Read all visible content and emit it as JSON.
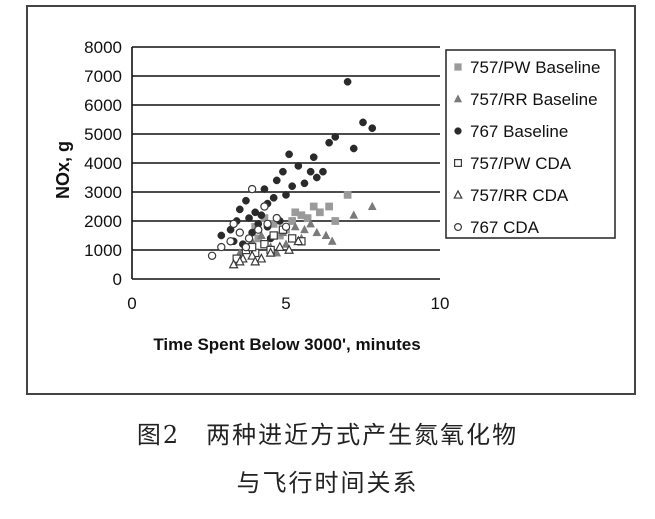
{
  "chart_data": {
    "type": "scatter",
    "title": "",
    "xlabel": "Time Spent Below 3000', minutes",
    "ylabel": "NOx, g",
    "xlim": [
      0,
      10
    ],
    "ylim": [
      0,
      8000
    ],
    "x_ticks": [
      "0",
      "5",
      "10"
    ],
    "y_ticks": [
      "0",
      "1000",
      "2000",
      "3000",
      "4000",
      "5000",
      "6000",
      "7000",
      "8000"
    ],
    "grid": "horizontal",
    "legend_position": "right",
    "series": [
      {
        "name": "757/PW Baseline",
        "marker": "square-filled",
        "color": "#9a9a9a",
        "points": [
          [
            4.0,
            1800
          ],
          [
            4.3,
            2100
          ],
          [
            4.6,
            1900
          ],
          [
            5.0,
            1700
          ],
          [
            5.2,
            2000
          ],
          [
            5.5,
            2200
          ],
          [
            5.7,
            2100
          ],
          [
            5.9,
            2500
          ],
          [
            6.1,
            2300
          ],
          [
            6.4,
            2500
          ],
          [
            6.6,
            2000
          ],
          [
            7.0,
            2900
          ],
          [
            4.8,
            1500
          ],
          [
            5.3,
            2300
          ],
          [
            4.1,
            1400
          ]
        ]
      },
      {
        "name": "757/RR Baseline",
        "marker": "triangle-filled",
        "color": "#7a7a7a",
        "points": [
          [
            3.5,
            900
          ],
          [
            3.9,
            1300
          ],
          [
            4.2,
            1500
          ],
          [
            4.5,
            1100
          ],
          [
            4.9,
            1600
          ],
          [
            5.0,
            1200
          ],
          [
            5.3,
            1800
          ],
          [
            5.5,
            1400
          ],
          [
            5.8,
            1900
          ],
          [
            6.0,
            1600
          ],
          [
            6.3,
            1500
          ],
          [
            6.5,
            1300
          ],
          [
            7.2,
            2200
          ],
          [
            7.8,
            2500
          ],
          [
            4.7,
            900
          ],
          [
            5.6,
            1700
          ]
        ]
      },
      {
        "name": "767 Baseline",
        "marker": "circle-filled",
        "color": "#2a2a2a",
        "points": [
          [
            2.9,
            1500
          ],
          [
            3.2,
            1700
          ],
          [
            3.4,
            2000
          ],
          [
            3.5,
            2400
          ],
          [
            3.6,
            1200
          ],
          [
            3.7,
            2700
          ],
          [
            3.8,
            2100
          ],
          [
            3.9,
            1600
          ],
          [
            4.0,
            2300
          ],
          [
            4.1,
            1900
          ],
          [
            4.2,
            2200
          ],
          [
            4.3,
            3100
          ],
          [
            4.4,
            2600
          ],
          [
            4.5,
            1400
          ],
          [
            4.6,
            2800
          ],
          [
            4.7,
            3400
          ],
          [
            4.8,
            2000
          ],
          [
            4.9,
            3700
          ],
          [
            5.0,
            2900
          ],
          [
            5.1,
            4300
          ],
          [
            5.2,
            3200
          ],
          [
            5.4,
            3900
          ],
          [
            5.6,
            3300
          ],
          [
            5.8,
            3700
          ],
          [
            5.9,
            4200
          ],
          [
            6.0,
            3500
          ],
          [
            6.2,
            3700
          ],
          [
            6.4,
            4700
          ],
          [
            6.6,
            4900
          ],
          [
            7.0,
            6800
          ],
          [
            7.2,
            4500
          ],
          [
            7.5,
            5400
          ],
          [
            7.8,
            5200
          ],
          [
            4.4,
            1800
          ],
          [
            3.3,
            1300
          ]
        ]
      },
      {
        "name": "757/PW CDA",
        "marker": "square-open",
        "color": "#3a3a3a",
        "points": [
          [
            3.4,
            700
          ],
          [
            3.7,
            1000
          ],
          [
            4.0,
            900
          ],
          [
            4.3,
            1200
          ],
          [
            4.6,
            1500
          ],
          [
            4.9,
            1700
          ],
          [
            5.2,
            1400
          ],
          [
            5.5,
            1300
          ],
          [
            3.9,
            1100
          ],
          [
            4.5,
            1000
          ]
        ]
      },
      {
        "name": "757/RR CDA",
        "marker": "triangle-open",
        "color": "#3a3a3a",
        "points": [
          [
            3.3,
            500
          ],
          [
            3.6,
            700
          ],
          [
            3.9,
            800
          ],
          [
            4.2,
            700
          ],
          [
            4.5,
            900
          ],
          [
            4.8,
            1100
          ],
          [
            5.1,
            1000
          ],
          [
            5.4,
            1300
          ],
          [
            3.5,
            600
          ],
          [
            4.0,
            600
          ]
        ]
      },
      {
        "name": "767 CDA",
        "marker": "circle-open",
        "color": "#3a3a3a",
        "points": [
          [
            2.6,
            800
          ],
          [
            2.9,
            1100
          ],
          [
            3.2,
            1300
          ],
          [
            3.5,
            1600
          ],
          [
            3.8,
            1400
          ],
          [
            4.1,
            1700
          ],
          [
            4.4,
            1900
          ],
          [
            4.7,
            2100
          ],
          [
            5.0,
            1800
          ],
          [
            3.9,
            3100
          ],
          [
            4.3,
            2500
          ],
          [
            3.3,
            1900
          ],
          [
            3.7,
            1100
          ]
        ]
      }
    ]
  },
  "caption": {
    "line1": "图2　两种进近方式产生氮氧化物",
    "line2": "与飞行时间关系"
  }
}
